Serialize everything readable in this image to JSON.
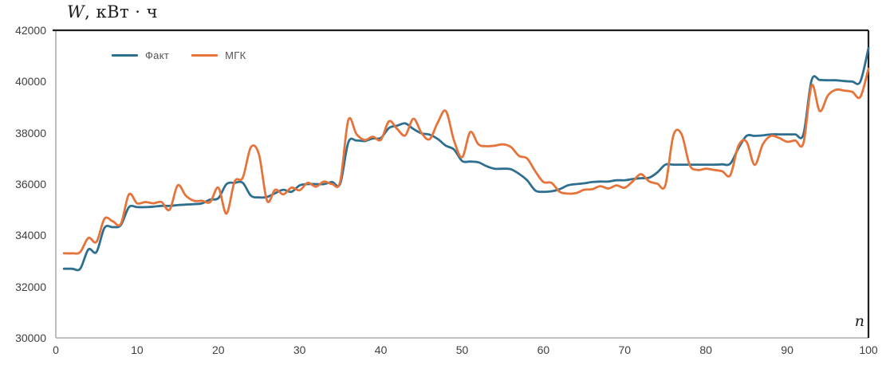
{
  "chart": {
    "title_symbol": "W",
    "title_units": ", кВт · ч",
    "x_axis_symbol": "n"
  },
  "chart_data": {
    "type": "line",
    "title": "W, кВт · ч",
    "xlabel": "n",
    "ylabel": "W, кВт · ч",
    "xlim": [
      0,
      100
    ],
    "ylim": [
      30000,
      42000
    ],
    "x_ticks": [
      0,
      10,
      20,
      30,
      40,
      50,
      60,
      70,
      80,
      90,
      100
    ],
    "y_ticks": [
      30000,
      32000,
      34000,
      36000,
      38000,
      40000,
      42000
    ],
    "grid": false,
    "smoothed_lines": true,
    "legend_position": "top-left-inside",
    "x_start": 1,
    "x_step": 1,
    "n_points": 100,
    "series": [
      {
        "name": "Факт",
        "color": "#2E6F8F",
        "values": [
          32700,
          32700,
          32700,
          33450,
          33350,
          34300,
          34320,
          34400,
          35100,
          35100,
          35100,
          35120,
          35150,
          35150,
          35180,
          35200,
          35220,
          35250,
          35400,
          35450,
          36000,
          36050,
          36050,
          35550,
          35480,
          35500,
          35650,
          35780,
          35700,
          35950,
          36000,
          36000,
          36000,
          36080,
          36020,
          37630,
          37700,
          37680,
          37780,
          37800,
          38190,
          38280,
          38370,
          38150,
          37980,
          37930,
          37760,
          37500,
          37350,
          36900,
          36880,
          36850,
          36700,
          36600,
          36600,
          36580,
          36400,
          36150,
          35750,
          35700,
          35720,
          35800,
          35950,
          36000,
          36030,
          36080,
          36100,
          36100,
          36150,
          36150,
          36200,
          36230,
          36250,
          36450,
          36760,
          36760,
          36760,
          36760,
          36760,
          36760,
          36760,
          36770,
          36800,
          37400,
          37880,
          37880,
          37900,
          37940,
          37940,
          37940,
          37940,
          37950,
          40050,
          40060,
          40050,
          40050,
          40020,
          40000,
          40000,
          41300
        ]
      },
      {
        "name": "МГК",
        "color": "#E5733A",
        "values": [
          33300,
          33300,
          33350,
          33900,
          33750,
          34650,
          34550,
          34450,
          35600,
          35250,
          35300,
          35250,
          35300,
          35000,
          35950,
          35550,
          35350,
          35350,
          35300,
          35860,
          34850,
          36100,
          36250,
          37440,
          37150,
          35350,
          35780,
          35600,
          35860,
          35760,
          36050,
          35900,
          36100,
          36000,
          36100,
          38500,
          37950,
          37720,
          37850,
          37730,
          38450,
          38150,
          37900,
          38550,
          38000,
          37750,
          38400,
          38850,
          37700,
          37050,
          38030,
          37550,
          37480,
          37500,
          37550,
          37450,
          37100,
          37000,
          36500,
          36080,
          36050,
          35700,
          35630,
          35650,
          35780,
          35800,
          35920,
          35830,
          35950,
          35860,
          36110,
          36390,
          36110,
          36020,
          35950,
          37900,
          37950,
          36750,
          36550,
          36600,
          36550,
          36500,
          36350,
          37500,
          37650,
          36750,
          37550,
          37880,
          37800,
          37650,
          37700,
          37600,
          39850,
          38850,
          39450,
          39680,
          39650,
          39600,
          39400,
          40500
        ]
      }
    ]
  }
}
